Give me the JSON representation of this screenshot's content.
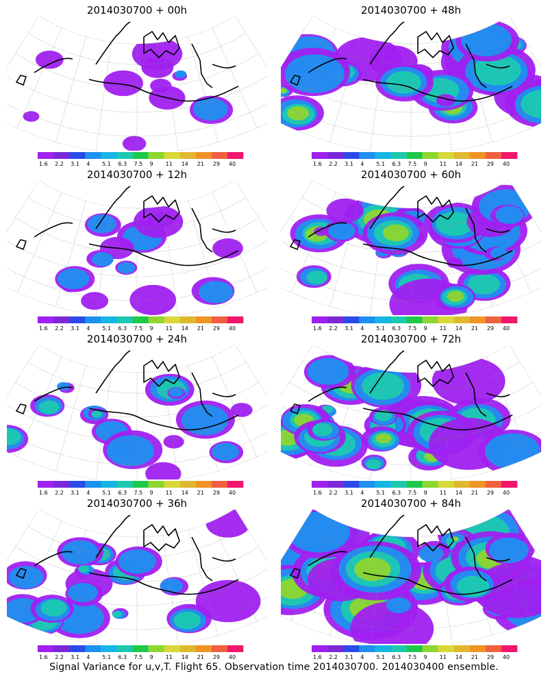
{
  "panels": [
    {
      "title": "2014030700 + 00h",
      "level": 0.15
    },
    {
      "title": "2014030700 + 48h",
      "level": 0.62
    },
    {
      "title": "2014030700 + 12h",
      "level": 0.25
    },
    {
      "title": "2014030700 + 60h",
      "level": 0.7
    },
    {
      "title": "2014030700 + 24h",
      "level": 0.35
    },
    {
      "title": "2014030700 + 72h",
      "level": 0.78
    },
    {
      "title": "2014030700 + 36h",
      "level": 0.45
    },
    {
      "title": "2014030700 + 84h",
      "level": 0.88
    }
  ],
  "colorbar": {
    "labels": [
      "1.6",
      "2.2",
      "3.1",
      "4",
      "5.1",
      "6.3",
      "7.5",
      "9",
      "11",
      "14",
      "21",
      "29",
      "40"
    ],
    "colors": [
      "#a020f0",
      "#7a28d8",
      "#2a4be8",
      "#1e90f0",
      "#17b5e3",
      "#1cc9b0",
      "#1ec94a",
      "#8ed630",
      "#d8d838",
      "#e0b830",
      "#f09428",
      "#f06040",
      "#f0186e"
    ]
  },
  "caption": "Signal Variance for u,v,T. Flight 65. Observation time 2014030700. 2014030400 ensemble."
}
